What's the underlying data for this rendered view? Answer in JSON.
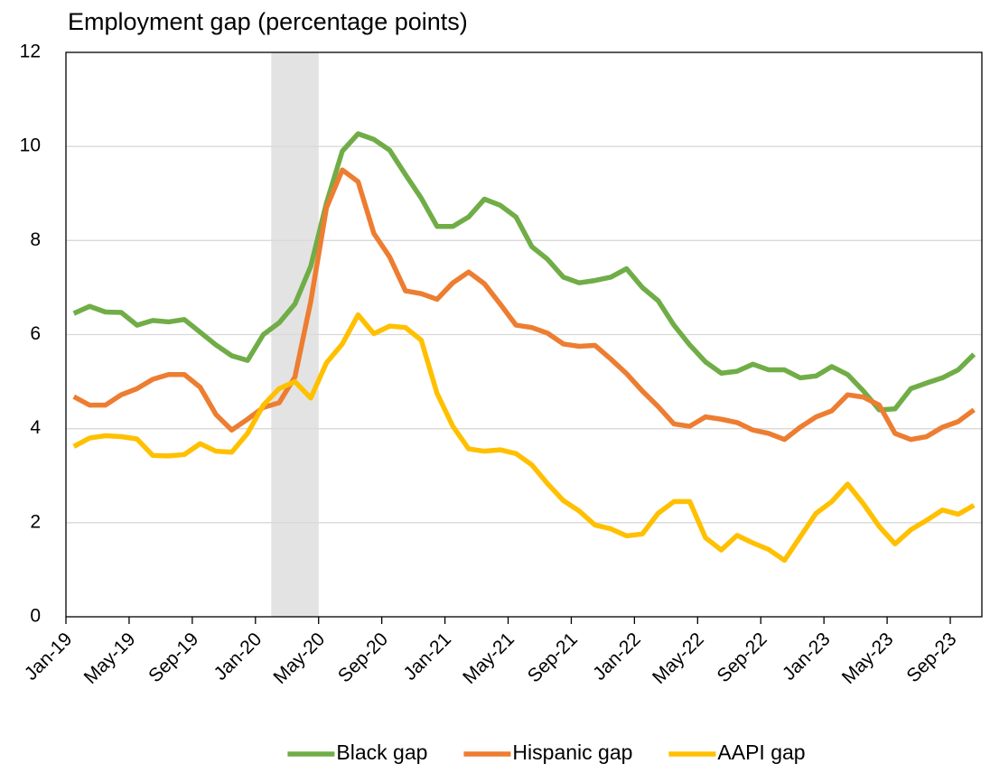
{
  "chart_data": {
    "type": "line",
    "title": "Employment gap (percentage points)",
    "categories": [
      "Jan-19",
      null,
      null,
      null,
      "May-19",
      null,
      null,
      null,
      "Sep-19",
      null,
      null,
      null,
      "Jan-20",
      null,
      null,
      null,
      "May-20",
      null,
      null,
      null,
      "Sep-20",
      null,
      null,
      null,
      "Jan-21",
      null,
      null,
      null,
      "May-21",
      null,
      null,
      null,
      "Sep-21",
      null,
      null,
      null,
      "Jan-22",
      null,
      null,
      null,
      "May-22",
      null,
      null,
      null,
      "Sep-22",
      null,
      null,
      null,
      "Jan-23",
      null,
      null,
      null,
      "May-23",
      null,
      null,
      null,
      "Sep-23",
      null
    ],
    "series": [
      {
        "name": "Black gap",
        "color": "#70ad47",
        "values": [
          6.45,
          6.6,
          6.48,
          6.47,
          6.2,
          6.3,
          6.27,
          6.32,
          6.05,
          5.78,
          5.55,
          5.45,
          6.0,
          6.25,
          6.65,
          7.45,
          8.8,
          9.9,
          10.27,
          10.15,
          9.92,
          9.4,
          8.9,
          8.3,
          8.3,
          8.5,
          8.88,
          8.75,
          8.5,
          7.87,
          7.6,
          7.22,
          7.1,
          7.15,
          7.22,
          7.4,
          7.0,
          6.72,
          6.2,
          5.78,
          5.42,
          5.18,
          5.22,
          5.37,
          5.25,
          5.25,
          5.08,
          5.12,
          5.32,
          5.15,
          4.8,
          4.4,
          4.42,
          4.85,
          4.97,
          5.08,
          5.25,
          5.58
        ]
      },
      {
        "name": "Hispanic gap",
        "color": "#ed7d31",
        "values": [
          4.68,
          4.5,
          4.5,
          4.72,
          4.85,
          5.05,
          5.15,
          5.15,
          4.88,
          4.3,
          3.97,
          4.2,
          4.45,
          4.55,
          5.1,
          6.7,
          8.7,
          9.5,
          9.25,
          8.15,
          7.65,
          6.93,
          6.87,
          6.75,
          7.1,
          7.33,
          7.08,
          6.65,
          6.2,
          6.15,
          6.03,
          5.8,
          5.75,
          5.77,
          5.48,
          5.17,
          4.8,
          4.47,
          4.1,
          4.05,
          4.25,
          4.2,
          4.13,
          3.97,
          3.9,
          3.77,
          4.03,
          4.25,
          4.38,
          4.72,
          4.67,
          4.5,
          3.9,
          3.77,
          3.83,
          4.03,
          4.15,
          4.4
        ]
      },
      {
        "name": "AAPI gap",
        "color": "#ffc000",
        "values": [
          3.62,
          3.8,
          3.85,
          3.83,
          3.78,
          3.43,
          3.42,
          3.45,
          3.68,
          3.52,
          3.5,
          3.9,
          4.5,
          4.85,
          5.0,
          4.65,
          5.4,
          5.8,
          6.42,
          6.02,
          6.18,
          6.15,
          5.88,
          4.75,
          4.05,
          3.57,
          3.52,
          3.55,
          3.47,
          3.23,
          2.83,
          2.47,
          2.25,
          1.95,
          1.87,
          1.72,
          1.76,
          2.2,
          2.45,
          2.45,
          1.68,
          1.42,
          1.73,
          1.57,
          1.43,
          1.2,
          1.7,
          2.2,
          2.45,
          2.82,
          2.4,
          1.92,
          1.55,
          1.85,
          2.05,
          2.27,
          2.18,
          2.37
        ]
      }
    ],
    "shaded_range": [
      13,
      16
    ],
    "shade_color": "#e3e3e3",
    "ylim": [
      0,
      12
    ],
    "yticks": [
      0,
      2,
      4,
      6,
      8,
      10,
      12
    ],
    "grid": true,
    "legend": "bottom"
  }
}
